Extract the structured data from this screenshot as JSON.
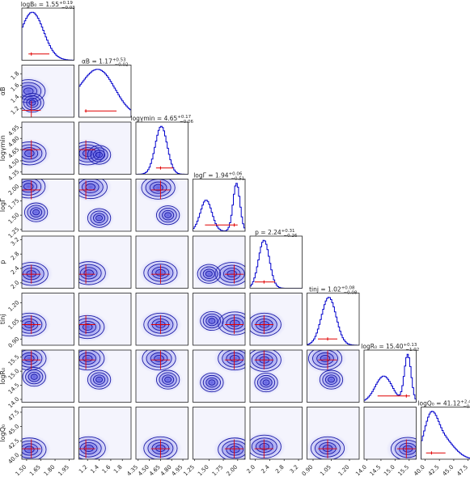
{
  "chart_data": {
    "type": "corner",
    "title": "",
    "parameters": [
      {
        "key": "logB0",
        "axis_label": "logB₀",
        "title": "logB₀ = 1.55",
        "sup": "+0.19",
        "sub": "−0.03",
        "median": 1.55,
        "range": [
          1.45,
          2.0
        ],
        "ticks": [
          "1.50",
          "1.65",
          "1.80",
          "1.95"
        ],
        "tick_values": [
          1.5,
          1.65,
          1.8,
          1.95
        ]
      },
      {
        "key": "alphaB",
        "axis_label": "αB",
        "title": "αB = 1.17",
        "sup": "+0.53",
        "sub": "−0.02",
        "median": 1.17,
        "range": [
          1.05,
          1.95
        ],
        "ticks": [
          "1.2",
          "1.4",
          "1.6",
          "1.8"
        ],
        "tick_values": [
          1.2,
          1.4,
          1.6,
          1.8
        ]
      },
      {
        "key": "loggmin",
        "axis_label": "logγmin",
        "title": "logγmin = 4.65",
        "sup": "+0.17",
        "sub": "−0.06",
        "median": 4.65,
        "range": [
          4.32,
          5.02
        ],
        "ticks": [
          "4.35",
          "4.50",
          "4.65",
          "4.80",
          "4.95"
        ],
        "tick_values": [
          4.35,
          4.5,
          4.65,
          4.8,
          4.95
        ]
      },
      {
        "key": "logGamma",
        "axis_label": "logΓ",
        "title": "logΓ = 1.94",
        "sup": "+0.06",
        "sub": "−0.51",
        "median": 1.94,
        "range": [
          1.22,
          2.13
        ],
        "ticks": [
          "1.25",
          "1.50",
          "1.75",
          "2.00"
        ],
        "tick_values": [
          1.25,
          1.5,
          1.75,
          2.0
        ]
      },
      {
        "key": "p",
        "axis_label": "p",
        "title": "p = 2.24",
        "sup": "+0.31",
        "sub": "−0.26",
        "median": 2.24,
        "range": [
          1.85,
          3.3
        ],
        "ticks": [
          "2.0",
          "2.4",
          "2.8",
          "3.2"
        ],
        "tick_values": [
          2.0,
          2.4,
          2.8,
          3.2
        ]
      },
      {
        "key": "tinj",
        "axis_label": "tinj",
        "title": "tinj = 1.02",
        "sup": "+0.08",
        "sub": "−0.08",
        "median": 1.02,
        "range": [
          0.85,
          1.28
        ],
        "ticks": [
          "0.90",
          "1.05",
          "1.20"
        ],
        "tick_values": [
          0.9,
          1.05,
          1.2
        ]
      },
      {
        "key": "logR0",
        "axis_label": "logR₀",
        "title": "logR₀ = 15.40",
        "sup": "+0.13",
        "sub": "−1.02",
        "median": 15.4,
        "range": [
          13.9,
          15.75
        ],
        "ticks": [
          "14.0",
          "14.5",
          "15.0",
          "15.5"
        ],
        "tick_values": [
          14.0,
          14.5,
          15.0,
          15.5
        ]
      },
      {
        "key": "logQ0",
        "axis_label": "logQ₀",
        "title": "logQ₀ = 41.12",
        "sup": "+2.44",
        "sub": "−0.95",
        "median": 41.12,
        "range": [
          39.3,
          48.4
        ],
        "ticks": [
          "40.0",
          "42.5",
          "45.0",
          "47.5"
        ],
        "tick_values": [
          40.0,
          42.5,
          45.0,
          47.5
        ]
      }
    ],
    "pair_peaks": {
      "1-0": [
        [
          1.52,
          1.5
        ],
        [
          1.56,
          1.3
        ]
      ],
      "2-0": [
        [
          1.53,
          4.6
        ]
      ],
      "2-1": [
        [
          1.2,
          4.6
        ],
        [
          1.4,
          4.58
        ]
      ],
      "3-0": [
        [
          1.52,
          2.0
        ],
        [
          1.6,
          1.55
        ]
      ],
      "3-1": [
        [
          1.25,
          1.99
        ],
        [
          1.4,
          1.45
        ]
      ],
      "3-2": [
        [
          4.62,
          1.98
        ],
        [
          4.75,
          1.5
        ]
      ],
      "4-0": [
        [
          1.55,
          2.25
        ]
      ],
      "4-1": [
        [
          1.22,
          2.27
        ]
      ],
      "4-2": [
        [
          4.65,
          2.28
        ]
      ],
      "4-3": [
        [
          1.9,
          2.25
        ],
        [
          1.5,
          2.25
        ]
      ],
      "4-0b": [],
      "5-0": [
        [
          1.53,
          1.02
        ]
      ],
      "5-1": [
        [
          1.2,
          1.0
        ]
      ],
      "5-2": [
        [
          4.65,
          1.02
        ]
      ],
      "5-3": [
        [
          1.95,
          1.03
        ],
        [
          1.55,
          1.05
        ]
      ],
      "5-4": [
        [
          2.25,
          1.02
        ]
      ],
      "6-0": [
        [
          1.53,
          15.45
        ],
        [
          1.58,
          14.8
        ]
      ],
      "6-1": [
        [
          1.2,
          15.45
        ],
        [
          1.4,
          14.7
        ]
      ],
      "6-2": [
        [
          4.63,
          15.45
        ],
        [
          4.75,
          14.7
        ]
      ],
      "6-3": [
        [
          1.95,
          15.45
        ],
        [
          1.55,
          14.6
        ]
      ],
      "6-4": [
        [
          2.25,
          15.4
        ],
        [
          2.3,
          14.6
        ]
      ],
      "6-5": [
        [
          1.0,
          15.45
        ],
        [
          1.05,
          14.7
        ]
      ],
      "7-0": [
        [
          1.53,
          41.0
        ]
      ],
      "7-1": [
        [
          1.22,
          41.2
        ]
      ],
      "7-2": [
        [
          4.65,
          41.2
        ]
      ],
      "7-3": [
        [
          1.95,
          41.0
        ]
      ],
      "7-4": [
        [
          2.25,
          41.5
        ]
      ],
      "7-5": [
        [
          1.02,
          41.2
        ]
      ],
      "7-6": [
        [
          15.45,
          41.1
        ]
      ]
    },
    "marginal_modes": [
      [
        [
          1.56,
          0.12
        ]
      ],
      [
        [
          1.25,
          0.35
        ],
        [
          1.45,
          0.25
        ]
      ],
      [
        [
          4.66,
          0.08
        ]
      ],
      [
        [
          1.45,
          0.1
        ],
        [
          1.98,
          0.06
        ]
      ],
      [
        [
          2.24,
          0.15
        ]
      ],
      [
        [
          1.03,
          0.06
        ]
      ],
      [
        [
          14.6,
          0.3
        ],
        [
          15.45,
          0.12
        ]
      ],
      [
        [
          41.0,
          1.2
        ],
        [
          43.0,
          2.0
        ]
      ]
    ],
    "marginal_weights": [
      [
        1.0
      ],
      [
        1.0,
        0.8
      ],
      [
        1.0
      ],
      [
        0.65,
        1.0
      ],
      [
        1.0
      ],
      [
        1.0
      ],
      [
        0.55,
        1.0
      ],
      [
        1.0,
        0.6
      ]
    ]
  }
}
